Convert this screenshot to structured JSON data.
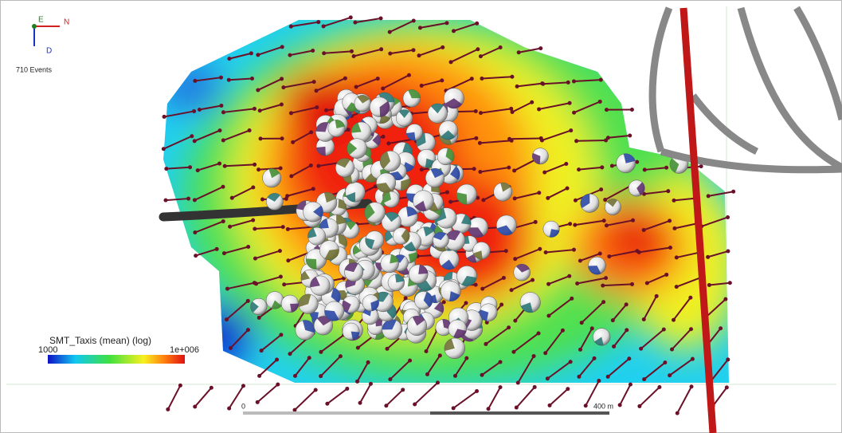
{
  "orientation_axes": {
    "labels": [
      "E",
      "N",
      "D"
    ]
  },
  "event_count": "710 Events",
  "colorbar": {
    "title": "SMT_Taxis (mean) (log)",
    "min_label": "1000",
    "max_label": "1e+006"
  },
  "scale_bar": {
    "start_label": "0",
    "end_label": "400 m"
  }
}
